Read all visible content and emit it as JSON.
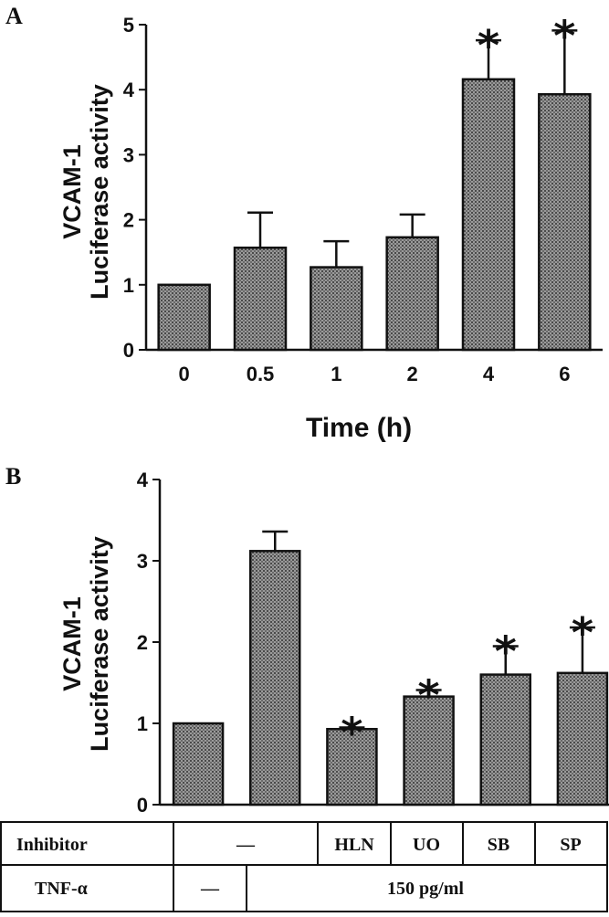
{
  "chart_data": [
    {
      "type": "bar",
      "panel": "A",
      "ylabel_line1": "VCAM-1",
      "ylabel_line2": "Luciferase activity",
      "xlabel": "Time (h)",
      "categories": [
        "0",
        "0.5",
        "1",
        "2",
        "4",
        "6"
      ],
      "values": [
        1.0,
        1.57,
        1.27,
        1.73,
        4.16,
        3.93
      ],
      "errors": [
        0.0,
        0.54,
        0.4,
        0.35,
        0.6,
        0.98
      ],
      "significant": [
        false,
        false,
        false,
        false,
        true,
        true
      ],
      "ylim": [
        0,
        5
      ],
      "yticks": [
        "0",
        "1",
        "2",
        "3",
        "4",
        "5"
      ],
      "bar_style": "grey stippled fill, black outline",
      "marker": "*"
    },
    {
      "type": "bar",
      "panel": "B",
      "ylabel_line1": "VCAM-1",
      "ylabel_line2": "Luciferase activity",
      "categories": [
        "",
        "",
        "",
        "",
        "",
        ""
      ],
      "values": [
        1.0,
        3.12,
        0.93,
        1.33,
        1.6,
        1.62
      ],
      "errors": [
        0.0,
        0.24,
        0.02,
        0.08,
        0.35,
        0.56
      ],
      "significant": [
        false,
        false,
        true,
        true,
        true,
        true
      ],
      "ylim": [
        0,
        4
      ],
      "yticks": [
        "0",
        "1",
        "2",
        "3",
        "4"
      ],
      "bar_style": "grey stippled fill, black outline",
      "marker": "*"
    }
  ],
  "table": {
    "row1_label": "Inhibitor",
    "row1_dash": "—",
    "inhibitors": [
      "HLN",
      "UO",
      "SB",
      "SP"
    ],
    "row2_label": "TNF-α",
    "row2_dash": "—",
    "row2_value": "150 pg/ml"
  }
}
